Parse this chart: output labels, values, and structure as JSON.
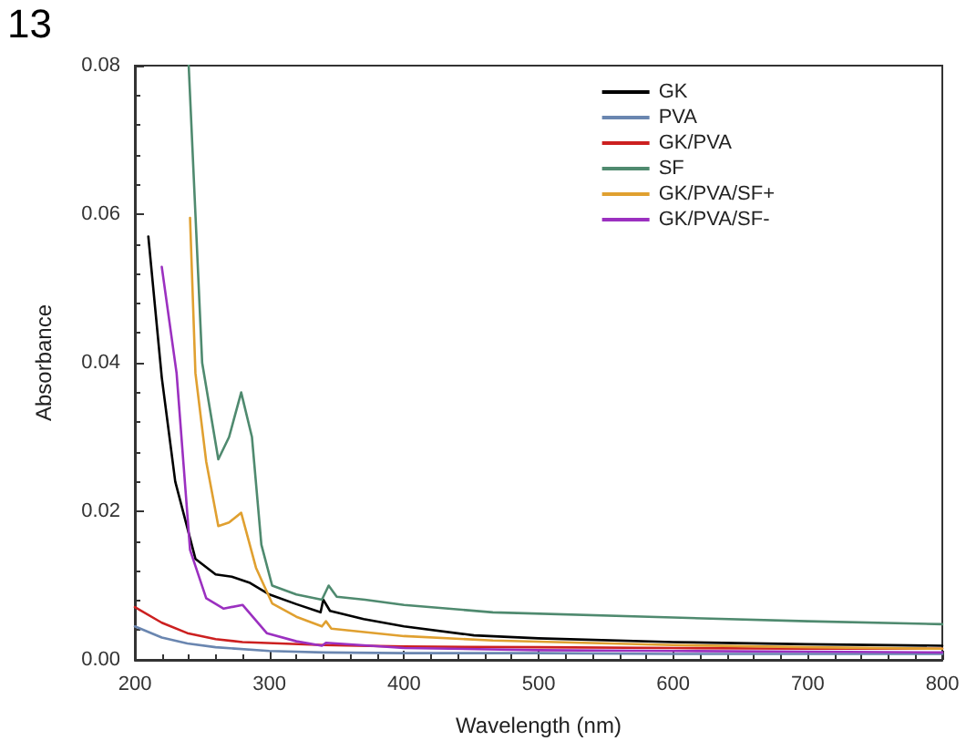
{
  "chart_data": {
    "type": "line",
    "xlabel": "Wavelength (nm)",
    "ylabel": "Absorbance",
    "annotations": [
      "13"
    ],
    "xlim": [
      200,
      800
    ],
    "xticks": [
      200,
      300,
      400,
      500,
      600,
      700,
      800
    ],
    "ylim": [
      0,
      0.08
    ],
    "yticks": [
      {
        "value": 0,
        "label": "0.00"
      },
      0.02,
      0.04,
      0.06,
      0.08
    ],
    "grid": false,
    "legend": "top right",
    "marker": "none",
    "line_style": "solid",
    "series": [
      {
        "name": "GK",
        "color": "#000000",
        "x": [
          210,
          220,
          230,
          245,
          260,
          272,
          285,
          300,
          320,
          338,
          340,
          345,
          370,
          400,
          452,
          500,
          600,
          700,
          800
        ],
        "values": [
          0.057,
          0.038,
          0.024,
          0.0136,
          0.0115,
          0.0112,
          0.0104,
          0.0088,
          0.0075,
          0.0064,
          0.0081,
          0.0066,
          0.0055,
          0.0045,
          0.0033,
          0.0029,
          0.0024,
          0.0021,
          0.0019
        ]
      },
      {
        "name": "PVA",
        "color": "#6a86b0",
        "x": [
          200,
          220,
          239,
          260,
          300,
          340,
          400,
          500,
          600,
          700,
          800
        ],
        "values": [
          0.0045,
          0.003,
          0.0022,
          0.0017,
          0.0012,
          0.001,
          0.0009,
          0.0009,
          0.0008,
          0.0008,
          0.0008
        ]
      },
      {
        "name": "GK/PVA",
        "color": "#cc2020",
        "x": [
          200,
          220,
          239,
          260,
          280,
          340,
          400,
          500,
          600,
          700,
          800
        ],
        "values": [
          0.0071,
          0.005,
          0.0036,
          0.0028,
          0.0024,
          0.002,
          0.0018,
          0.0017,
          0.0016,
          0.0015,
          0.0015
        ]
      },
      {
        "name": "SF",
        "color": "#4f8a6f",
        "x": [
          240,
          250,
          262,
          270,
          279,
          287,
          294,
          302,
          320,
          339,
          344,
          350,
          371,
          400,
          466,
          600,
          700,
          800
        ],
        "values": [
          0.08,
          0.04,
          0.027,
          0.03,
          0.036,
          0.03,
          0.0155,
          0.01,
          0.0088,
          0.0081,
          0.01,
          0.0085,
          0.0081,
          0.0074,
          0.0064,
          0.0057,
          0.0052,
          0.0048
        ]
      },
      {
        "name": "GK/PVA/SF+",
        "color": "#e0a030",
        "x": [
          241,
          245,
          253,
          262,
          270,
          279,
          290,
          302,
          320,
          339,
          342,
          346,
          400,
          466,
          600,
          700,
          800
        ],
        "values": [
          0.0595,
          0.0386,
          0.0267,
          0.018,
          0.0185,
          0.0198,
          0.0124,
          0.0076,
          0.0058,
          0.0045,
          0.0052,
          0.0042,
          0.0032,
          0.0026,
          0.002,
          0.0017,
          0.0015
        ]
      },
      {
        "name": "GK/PVA/SF-",
        "color": "#9b30c0",
        "x": [
          220,
          231,
          241,
          253,
          266,
          280,
          298,
          320,
          339,
          342,
          400,
          500,
          600,
          700,
          800
        ],
        "values": [
          0.0529,
          0.0386,
          0.0148,
          0.0083,
          0.0069,
          0.0074,
          0.0036,
          0.0025,
          0.0019,
          0.0023,
          0.0016,
          0.0013,
          0.0012,
          0.0011,
          0.001
        ]
      }
    ]
  }
}
